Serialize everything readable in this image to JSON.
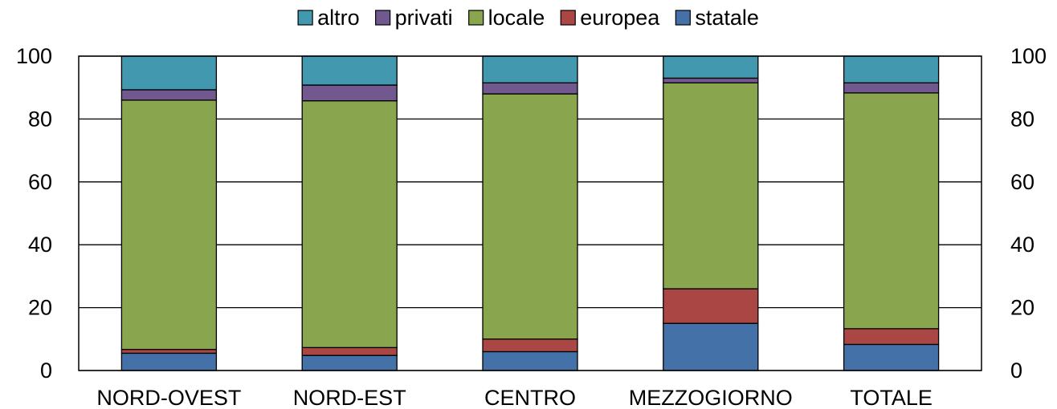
{
  "chart_data": {
    "type": "bar",
    "stacked": true,
    "categories": [
      "NORD-OVEST",
      "NORD-EST",
      "CENTRO",
      "MEZZOGIORNO",
      "TOTALE"
    ],
    "series": [
      {
        "name": "statale",
        "color": "#4472A8",
        "values": [
          5.5,
          4.8,
          6.0,
          15.0,
          8.3
        ]
      },
      {
        "name": "europea",
        "color": "#AA4643",
        "values": [
          1.2,
          2.5,
          4.0,
          11.0,
          5.0
        ]
      },
      {
        "name": "locale",
        "color": "#89A54E",
        "values": [
          79.3,
          78.5,
          78.0,
          65.5,
          75.0
        ]
      },
      {
        "name": "privati",
        "color": "#71588F",
        "values": [
          3.3,
          5.0,
          3.5,
          1.5,
          3.2
        ]
      },
      {
        "name": "altro",
        "color": "#4198AF",
        "values": [
          10.7,
          9.2,
          8.5,
          7.0,
          8.5
        ]
      }
    ],
    "legend_order": [
      "altro",
      "privati",
      "locale",
      "europea",
      "statale"
    ],
    "ylim": [
      0,
      100
    ],
    "yticks": [
      0,
      20,
      40,
      60,
      80,
      100
    ],
    "grid": true,
    "legend_position": "top",
    "secondary_y_axis": true
  }
}
